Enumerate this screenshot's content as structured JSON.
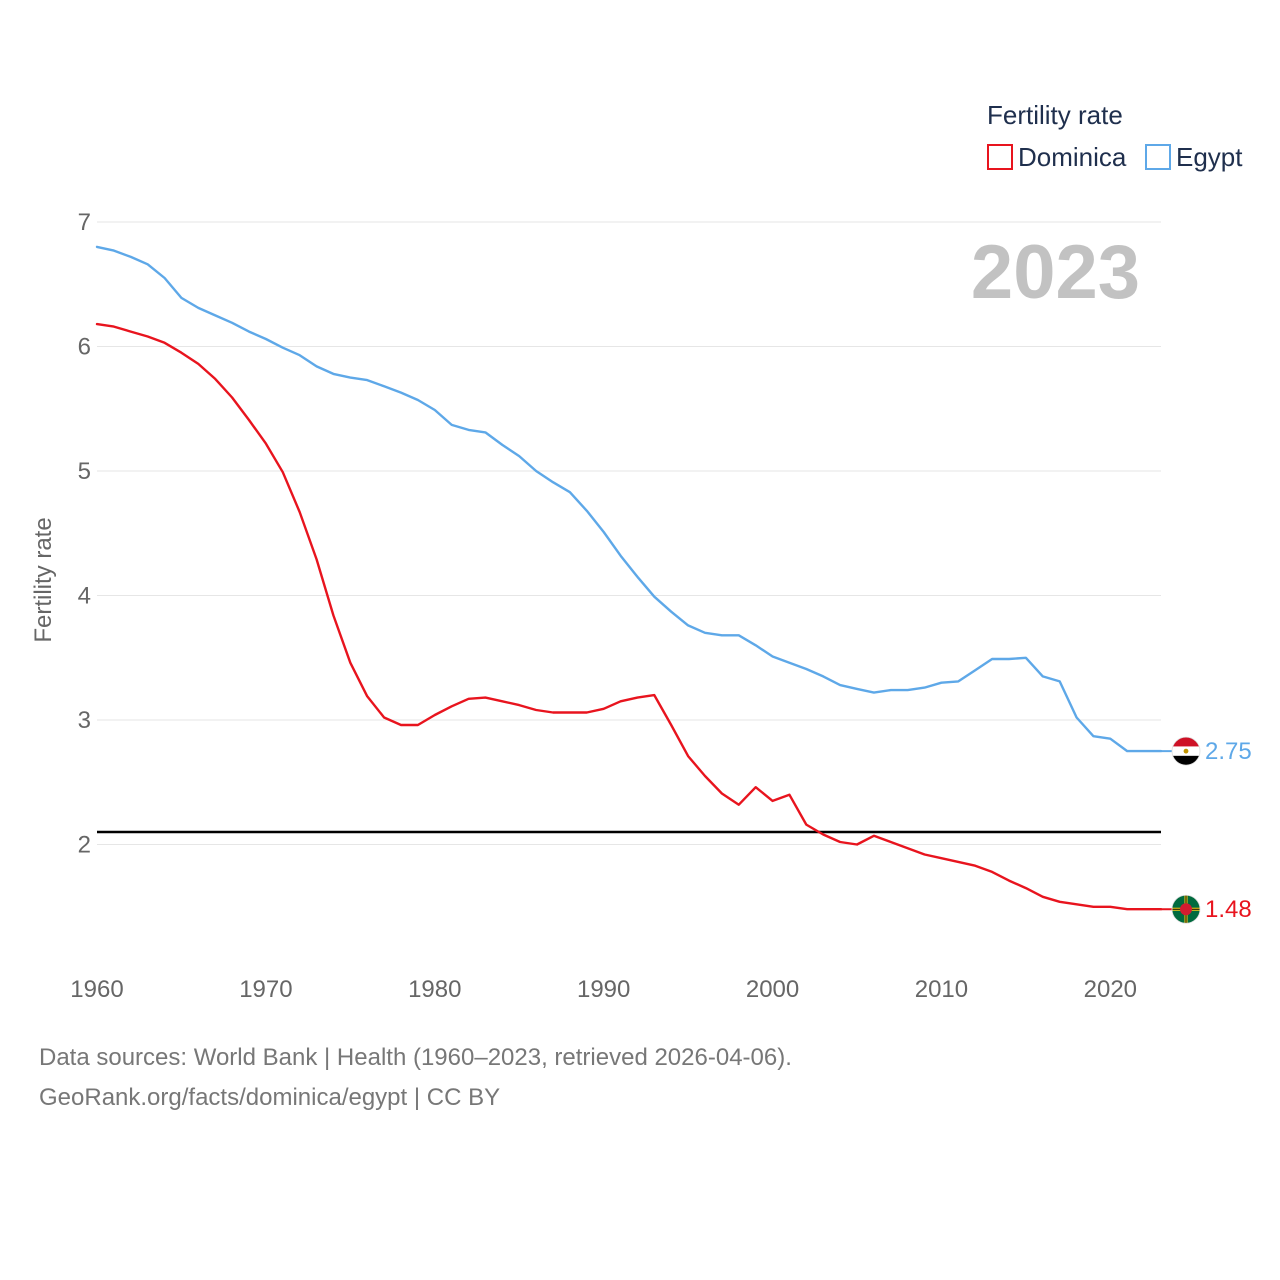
{
  "chart_data": {
    "type": "line",
    "title": "Fertility rate",
    "year_label": "2023",
    "ylabel": "Fertility rate",
    "xlabel": "",
    "xlim": [
      1960,
      2023
    ],
    "ylim": [
      1.0,
      7.0
    ],
    "x_ticks": [
      1960,
      1970,
      1980,
      1990,
      2000,
      2010,
      2020
    ],
    "y_ticks": [
      2,
      3,
      4,
      5,
      6,
      7
    ],
    "reference_line": 2.1,
    "legend_position": "top-right",
    "x": [
      1960,
      1961,
      1962,
      1963,
      1964,
      1965,
      1966,
      1967,
      1968,
      1969,
      1970,
      1971,
      1972,
      1973,
      1974,
      1975,
      1976,
      1977,
      1978,
      1979,
      1980,
      1981,
      1982,
      1983,
      1984,
      1985,
      1986,
      1987,
      1988,
      1989,
      1990,
      1991,
      1992,
      1993,
      1994,
      1995,
      1996,
      1997,
      1998,
      1999,
      2000,
      2001,
      2002,
      2003,
      2004,
      2005,
      2006,
      2007,
      2008,
      2009,
      2010,
      2011,
      2012,
      2013,
      2014,
      2015,
      2016,
      2017,
      2018,
      2019,
      2020,
      2021,
      2022,
      2023
    ],
    "series": [
      {
        "name": "Dominica",
        "color": "#e8141e",
        "end_label": "1.48",
        "values": [
          6.18,
          6.16,
          6.12,
          6.08,
          6.03,
          5.95,
          5.86,
          5.74,
          5.59,
          5.41,
          5.22,
          4.99,
          4.67,
          4.29,
          3.84,
          3.46,
          3.19,
          3.02,
          2.96,
          2.96,
          3.04,
          3.11,
          3.17,
          3.18,
          3.15,
          3.12,
          3.08,
          3.06,
          3.06,
          3.06,
          3.09,
          3.15,
          3.18,
          3.2,
          2.96,
          2.71,
          2.55,
          2.41,
          2.32,
          2.46,
          2.35,
          2.4,
          2.16,
          2.08,
          2.02,
          2.0,
          2.07,
          2.02,
          1.97,
          1.92,
          1.89,
          1.86,
          1.83,
          1.78,
          1.71,
          1.65,
          1.58,
          1.54,
          1.52,
          1.5,
          1.5,
          1.48,
          1.48,
          1.48
        ]
      },
      {
        "name": "Egypt",
        "color": "#5ea8e8",
        "end_label": "2.75",
        "values": [
          6.8,
          6.77,
          6.72,
          6.66,
          6.55,
          6.39,
          6.31,
          6.25,
          6.19,
          6.12,
          6.06,
          5.99,
          5.93,
          5.84,
          5.78,
          5.75,
          5.73,
          5.68,
          5.63,
          5.57,
          5.49,
          5.37,
          5.33,
          5.31,
          5.21,
          5.12,
          5.0,
          4.91,
          4.83,
          4.68,
          4.51,
          4.32,
          4.15,
          3.99,
          3.87,
          3.76,
          3.7,
          3.68,
          3.68,
          3.6,
          3.51,
          3.46,
          3.41,
          3.35,
          3.28,
          3.25,
          3.22,
          3.24,
          3.24,
          3.26,
          3.3,
          3.31,
          3.4,
          3.49,
          3.49,
          3.5,
          3.35,
          3.31,
          3.02,
          2.87,
          2.85,
          2.75,
          2.75,
          2.75
        ]
      }
    ]
  },
  "footer": {
    "line1": "Data sources: World Bank | Health (1960–2023, retrieved 2026-04-06).",
    "line2": "GeoRank.org/facts/dominica/egypt | CC BY"
  },
  "icons": {
    "egypt_flag": "egypt-flag-icon",
    "dominica_flag": "dominica-flag-icon"
  }
}
